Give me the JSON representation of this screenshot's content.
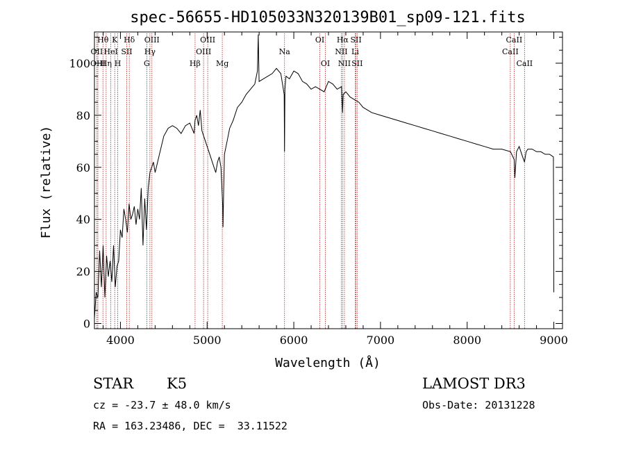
{
  "chart_data": {
    "type": "line",
    "title": "spec-56655-HD105033N320139B01_sp09-121.fits",
    "xlabel": "Wavelength (Å)",
    "ylabel": "Flux (relative)",
    "xlim": [
      3700,
      9100
    ],
    "ylim": [
      -2,
      112
    ],
    "xticks": [
      4000,
      5000,
      6000,
      7000,
      8000,
      9000
    ],
    "yticks": [
      0,
      20,
      40,
      60,
      80,
      100
    ],
    "minor_x_step": 200,
    "minor_y_step": 5,
    "grid": false,
    "line_color": "#000000",
    "marker_color": "#b22222",
    "series": [
      {
        "x": [
          3700,
          3720,
          3740,
          3760,
          3780,
          3800,
          3820,
          3840,
          3860,
          3880,
          3900,
          3920,
          3940,
          3960,
          3980,
          4000,
          4020,
          4040,
          4060,
          4080,
          4100,
          4120,
          4140,
          4160,
          4180,
          4200,
          4220,
          4240,
          4260,
          4280,
          4300,
          4320,
          4340,
          4360,
          4380,
          4400,
          4450,
          4500,
          4550,
          4600,
          4650,
          4700,
          4750,
          4800,
          4850,
          4860,
          4880,
          4900,
          4920,
          4940,
          4960,
          4980,
          5000,
          5020,
          5040,
          5060,
          5080,
          5100,
          5120,
          5140,
          5160,
          5180,
          5183,
          5190,
          5200,
          5230,
          5260,
          5300,
          5350,
          5400,
          5450,
          5500,
          5550,
          5580,
          5590,
          5600,
          5650,
          5700,
          5750,
          5800,
          5850,
          5889,
          5893,
          5898,
          5910,
          5950,
          6000,
          6050,
          6100,
          6150,
          6200,
          6250,
          6300,
          6350,
          6400,
          6450,
          6500,
          6550,
          6563,
          6570,
          6600,
          6650,
          6700,
          6750,
          6800,
          6900,
          7000,
          7100,
          7200,
          7300,
          7400,
          7500,
          7600,
          7700,
          7800,
          7900,
          8000,
          8100,
          8200,
          8300,
          8400,
          8500,
          8542,
          8550,
          8570,
          8600,
          8640,
          8662,
          8680,
          8700,
          8750,
          8800,
          8850,
          8900,
          8950,
          8995,
          9000
        ],
        "y": [
          2,
          12,
          10,
          28,
          14,
          30,
          10,
          26,
          18,
          24,
          16,
          30,
          14,
          22,
          24,
          36,
          33,
          44,
          40,
          35,
          46,
          40,
          42,
          45,
          38,
          44,
          40,
          52,
          30,
          48,
          36,
          52,
          58,
          60,
          62,
          58,
          65,
          72,
          75,
          76,
          75,
          73,
          76,
          77,
          73,
          78,
          80,
          76,
          82,
          74,
          72,
          70,
          68,
          66,
          64,
          62,
          60,
          58,
          62,
          64,
          60,
          45,
          37,
          50,
          65,
          70,
          75,
          78,
          83,
          85,
          88,
          90,
          92,
          97,
          111,
          93,
          94,
          95,
          96,
          98,
          96,
          88,
          66,
          90,
          95,
          94,
          97,
          96,
          93,
          92,
          90,
          91,
          90,
          89,
          93,
          92,
          90,
          91,
          81,
          88,
          89,
          87,
          86,
          85,
          83,
          81,
          80,
          79,
          78,
          77,
          76,
          75,
          74,
          73,
          72,
          71,
          70,
          69,
          68,
          67,
          67,
          66,
          63,
          56,
          66,
          68,
          64,
          62,
          66,
          67,
          67,
          66,
          66,
          65,
          65,
          64,
          12
        ]
      }
    ],
    "line_markers": [
      {
        "label": "Hθ",
        "x": 3798,
        "row": 0
      },
      {
        "label": "OII",
        "x": 3727,
        "row": 1
      },
      {
        "label": "OIII",
        "x": 3740,
        "row": 2
      },
      {
        "label": "Hη",
        "x": 3835,
        "row": 2
      },
      {
        "label": "HeI",
        "x": 3889,
        "row": 1
      },
      {
        "label": "K",
        "x": 3934,
        "row": 0
      },
      {
        "label": "H",
        "x": 3969,
        "row": 2
      },
      {
        "label": "SII",
        "x": 4072,
        "row": 1
      },
      {
        "label": "Hδ",
        "x": 4102,
        "row": 0
      },
      {
        "label": "G",
        "x": 4304,
        "row": 2
      },
      {
        "label": "Hγ",
        "x": 4340,
        "row": 1
      },
      {
        "label": "OIII",
        "x": 4363,
        "row": 0
      },
      {
        "label": "Hβ",
        "x": 4861,
        "row": 2
      },
      {
        "label": "OIII",
        "x": 4959,
        "row": 1
      },
      {
        "label": "OIII",
        "x": 5007,
        "row": 0
      },
      {
        "label": "Mg",
        "x": 5175,
        "row": 2
      },
      {
        "label": "Na",
        "x": 5893,
        "row": 1
      },
      {
        "label": "OI",
        "x": 6300,
        "row": 0
      },
      {
        "label": "OI",
        "x": 6364,
        "row": 2
      },
      {
        "label": "NII",
        "x": 6548,
        "row": 1
      },
      {
        "label": "Hα",
        "x": 6563,
        "row": 0
      },
      {
        "label": "NII",
        "x": 6584,
        "row": 2
      },
      {
        "label": "Li",
        "x": 6708,
        "row": 1
      },
      {
        "label": "SII",
        "x": 6717,
        "row": 0
      },
      {
        "label": "SII",
        "x": 6731,
        "row": 2
      },
      {
        "label": "CaII",
        "x": 8498,
        "row": 1
      },
      {
        "label": "CaII",
        "x": 8542,
        "row": 0
      },
      {
        "label": "CaII",
        "x": 8662,
        "row": 2
      }
    ]
  },
  "info": {
    "class_label": "STAR",
    "subclass": "K5",
    "survey": "LAMOST DR3",
    "redshift": "cz = -23.7 ± 48.0 km/s",
    "obs_date": "Obs-Date: 20131228",
    "coords": "RA = 163.23486, DEC =  33.11522"
  }
}
